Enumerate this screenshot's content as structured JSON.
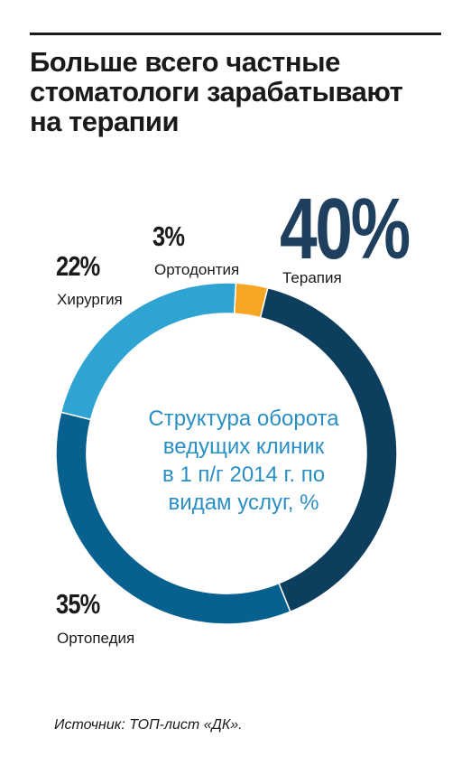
{
  "title": "Больше всего частные\nстоматологи зарабатывают\nна терапии",
  "center_text": "Структура оборота\nведущих клиник\nв 1 п/г 2014 г. по\nвидам услуг, %",
  "source": "Источник: ТОП-лист «ДК».",
  "colors": {
    "terapiya": "#0e3e5e",
    "ortopediya": "#08608f",
    "khirurgiya": "#2fa4d3",
    "ortodontiya": "#f5a623",
    "big_pct": "#1e3f5e",
    "center_text": "#2a8fc4"
  },
  "chart_data": {
    "type": "pie",
    "donut": true,
    "title": "Структура оборота ведущих клиник в 1 п/г 2014 г. по видам услуг, %",
    "categories": [
      "Терапия",
      "Ортопедия",
      "Хирургия",
      "Ортодонтия"
    ],
    "values": [
      40,
      35,
      22,
      3
    ],
    "labels": [
      "40%",
      "35%",
      "22%",
      "3%"
    ],
    "colors": [
      "#0e3e5e",
      "#08608f",
      "#2fa4d3",
      "#f5a623"
    ]
  }
}
